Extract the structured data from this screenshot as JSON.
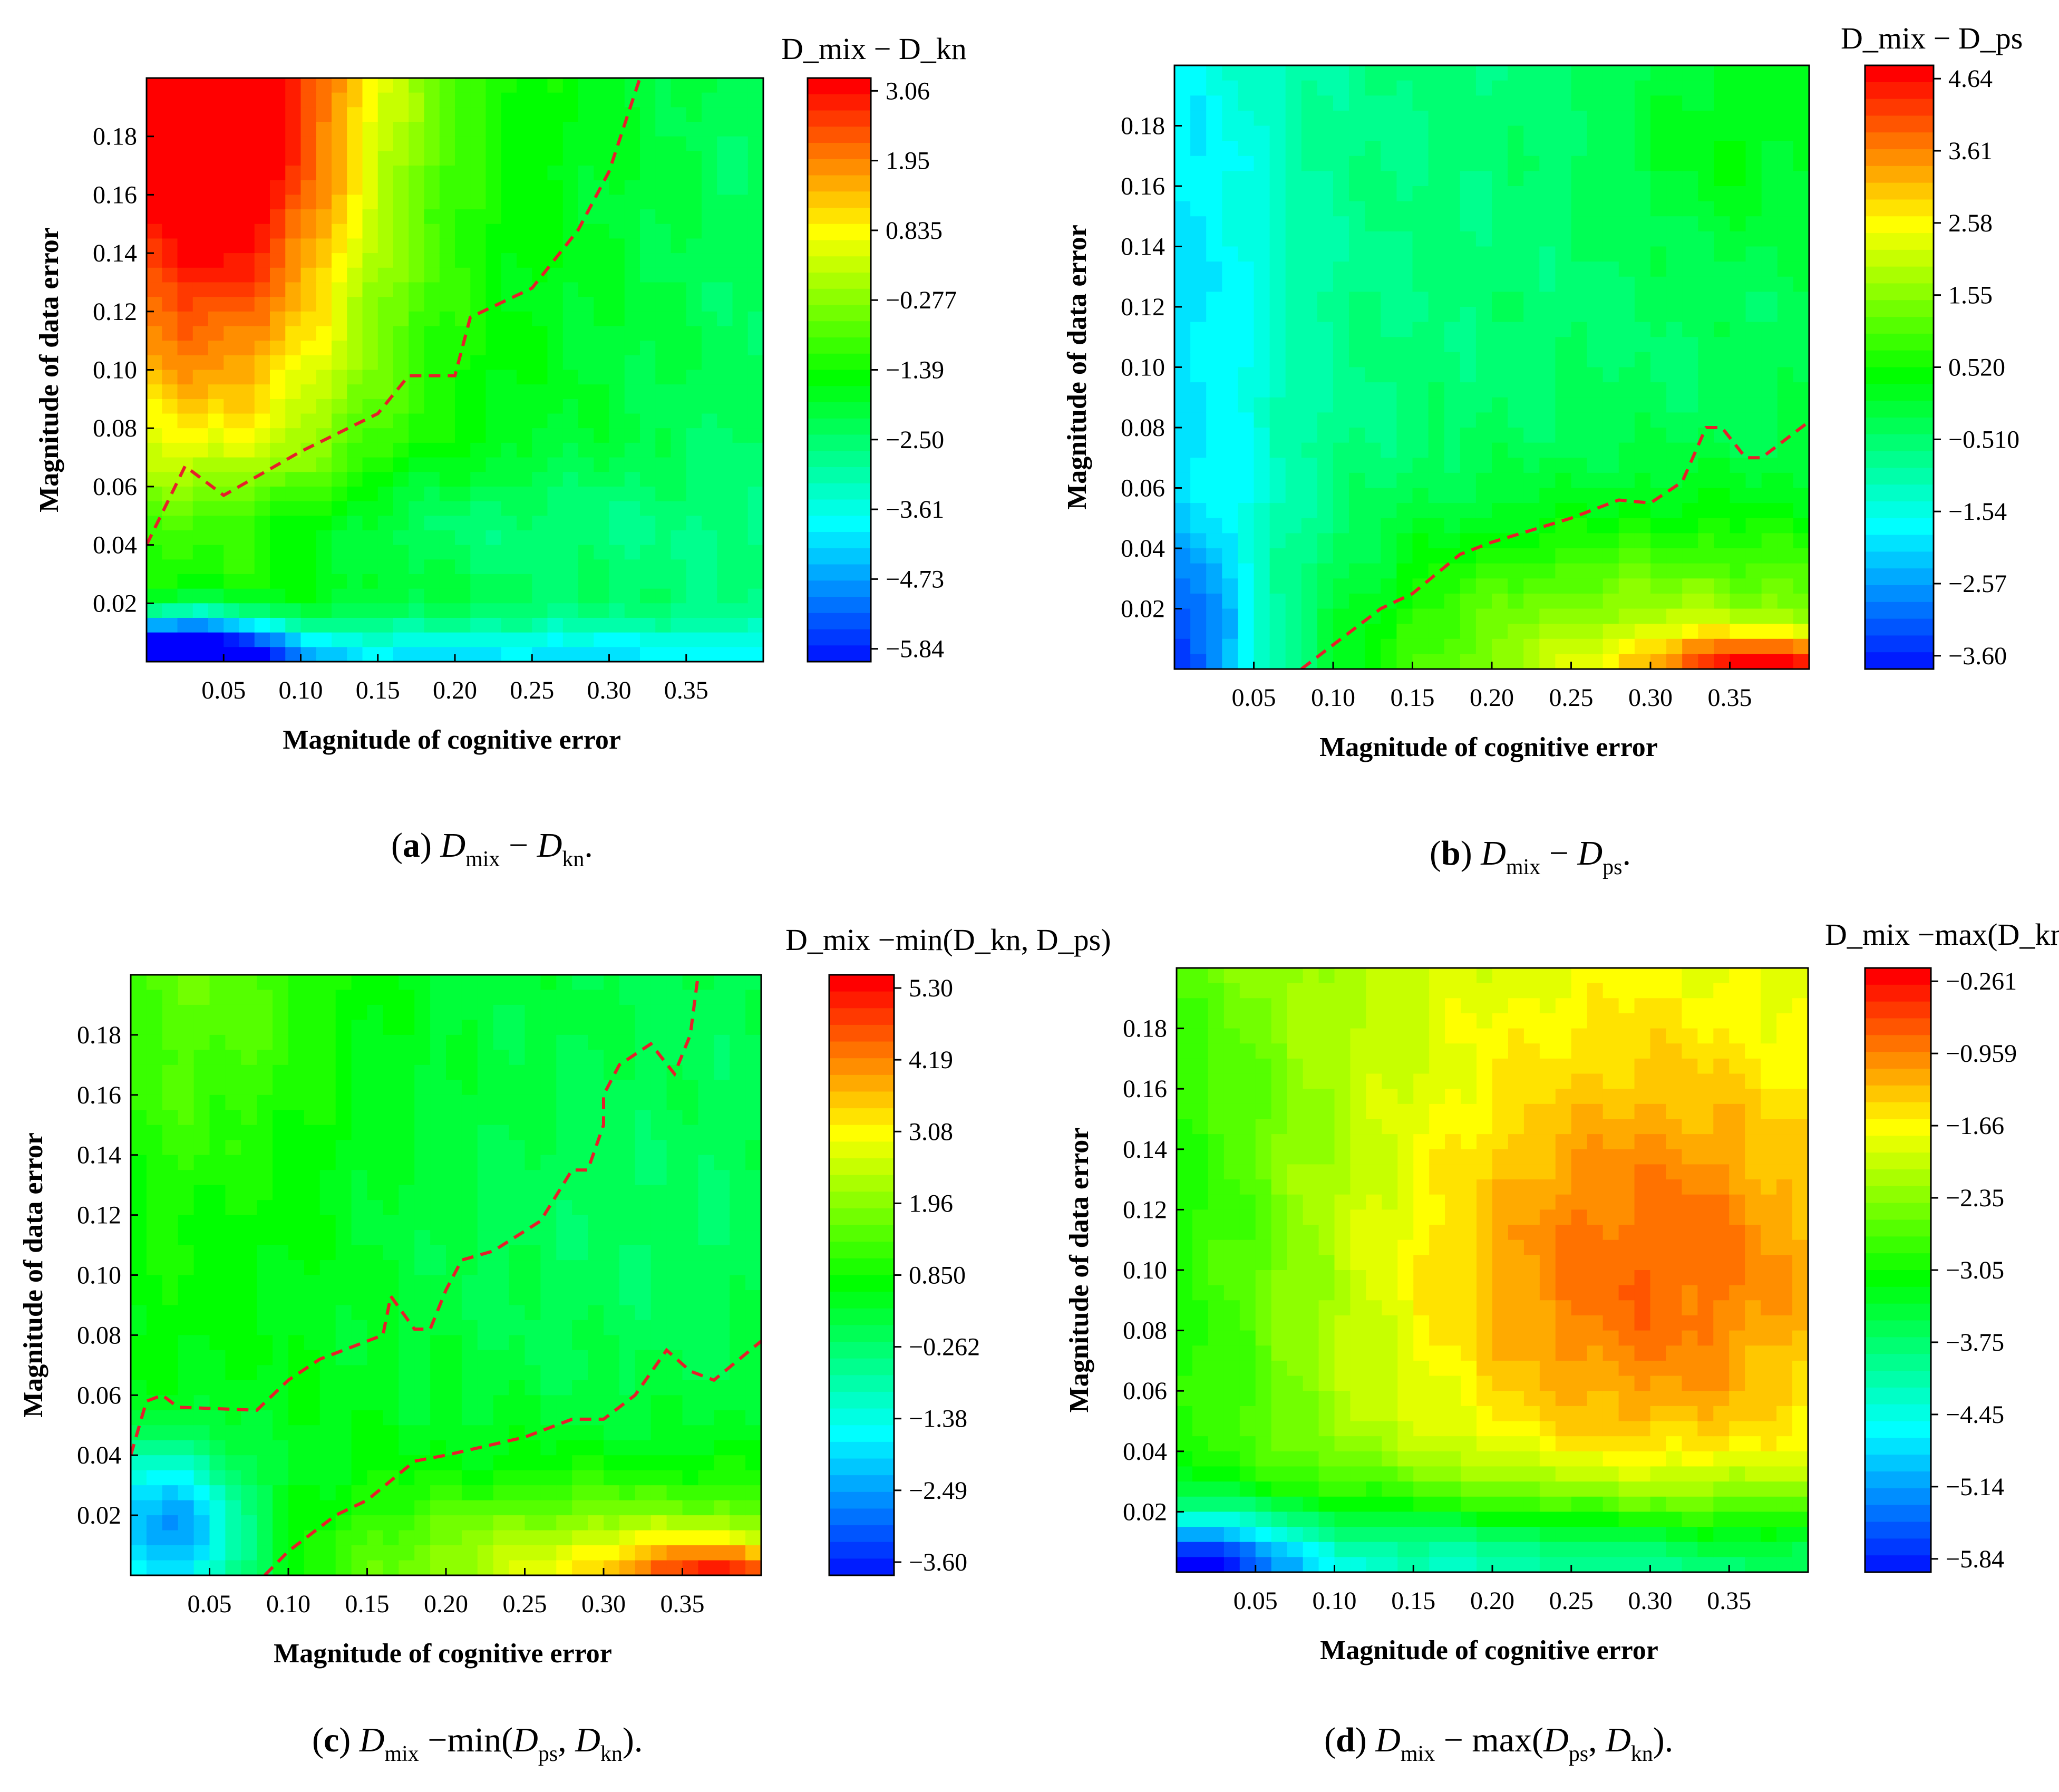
{
  "figure": {
    "panels": [
      {
        "id": "a",
        "caption_label": "a",
        "caption_expr": [
          "D",
          "mix",
          " − ",
          "D",
          "kn",
          "."
        ],
        "colorbar_title": "D_mix − D_kn",
        "colorbar_ticks": [
          "3.06",
          "1.95",
          "0.835",
          "−0.277",
          "−1.39",
          "−2.50",
          "−3.61",
          "−4.73",
          "−5.84"
        ],
        "x_ticks": [
          "0.05",
          "0.10",
          "0.15",
          "0.20",
          "0.25",
          "0.30",
          "0.35"
        ],
        "y_ticks": [
          "0.02",
          "0.04",
          "0.06",
          "0.08",
          "0.10",
          "0.12",
          "0.14",
          "0.16",
          "0.18"
        ]
      },
      {
        "id": "b",
        "caption_label": "b",
        "caption_expr": [
          "D",
          "mix",
          " − ",
          "D",
          "ps",
          "."
        ],
        "colorbar_title": "D_mix − D_ps",
        "colorbar_ticks": [
          "4.64",
          "3.61",
          "2.58",
          "1.55",
          "0.520",
          "−0.510",
          "−1.54",
          "−2.57",
          "−3.60"
        ],
        "x_ticks": [
          "0.05",
          "0.10",
          "0.15",
          "0.20",
          "0.25",
          "0.30",
          "0.35"
        ],
        "y_ticks": [
          "0.02",
          "0.04",
          "0.06",
          "0.08",
          "0.10",
          "0.12",
          "0.14",
          "0.16",
          "0.18"
        ]
      },
      {
        "id": "c",
        "caption_label": "c",
        "caption_expr": [
          "D",
          "mix",
          " −min(",
          "D",
          "ps",
          ", ",
          "D",
          "kn",
          ")."
        ],
        "colorbar_title": "D_mix −min(D_kn, D_ps)",
        "colorbar_ticks": [
          "5.30",
          "4.19",
          "3.08",
          "1.96",
          "0.850",
          "−0.262",
          "−1.38",
          "−2.49",
          "−3.60"
        ],
        "x_ticks": [
          "0.05",
          "0.10",
          "0.15",
          "0.20",
          "0.25",
          "0.30",
          "0.35"
        ],
        "y_ticks": [
          "0.02",
          "0.04",
          "0.06",
          "0.08",
          "0.10",
          "0.12",
          "0.14",
          "0.16",
          "0.18"
        ]
      },
      {
        "id": "d",
        "caption_label": "d",
        "caption_expr": [
          "D",
          "mix",
          " − max(",
          "D",
          "ps",
          ", ",
          "D",
          "kn",
          ")."
        ],
        "colorbar_title": "D_mix −max(D_kn, D_ps)",
        "colorbar_ticks": [
          "−0.261",
          "−0.959",
          "−1.66",
          "−2.35",
          "−3.05",
          "−3.75",
          "−4.45",
          "−5.14",
          "−5.84"
        ],
        "x_ticks": [
          "0.05",
          "0.10",
          "0.15",
          "0.20",
          "0.25",
          "0.30",
          "0.35"
        ],
        "y_ticks": [
          "0.02",
          "0.04",
          "0.06",
          "0.08",
          "0.10",
          "0.12",
          "0.14",
          "0.16",
          "0.18"
        ]
      }
    ],
    "xlabel": "Magnitude of cognitive error",
    "ylabel": "Magnitude of data error",
    "colormap": [
      "#0000ff",
      "#0080ff",
      "#00ffff",
      "#00ff80",
      "#00ff00",
      "#80ff00",
      "#ffff00",
      "#ff8000",
      "#ff0000"
    ],
    "contour_color": "#e5202a"
  },
  "chart_data": [
    {
      "type": "heatmap",
      "panel": "a",
      "title": "D_mix − D_kn",
      "xlabel": "Magnitude of cognitive error",
      "ylabel": "Magnitude of data error",
      "xlim": [
        0.0,
        0.4
      ],
      "ylim": [
        0.0,
        0.2
      ],
      "zlim": [
        -5.84,
        3.06
      ],
      "zero_contour": [
        [
          0.0,
          0.04
        ],
        [
          0.025,
          0.067
        ],
        [
          0.05,
          0.057
        ],
        [
          0.1,
          0.072
        ],
        [
          0.15,
          0.085
        ],
        [
          0.17,
          0.098
        ],
        [
          0.2,
          0.098
        ],
        [
          0.21,
          0.118
        ],
        [
          0.25,
          0.128
        ],
        [
          0.28,
          0.148
        ],
        [
          0.3,
          0.168
        ],
        [
          0.32,
          0.2
        ]
      ],
      "features": [
        "max (~3.06) at cognitive 0.03–0.05, data 0.17–0.20",
        "min (~−5.84) near cognitive 0.02, data 0.00–0.01"
      ]
    },
    {
      "type": "heatmap",
      "panel": "b",
      "title": "D_mix − D_ps",
      "xlabel": "Magnitude of cognitive error",
      "ylabel": "Magnitude of data error",
      "xlim": [
        0.0,
        0.4
      ],
      "ylim": [
        0.0,
        0.2
      ],
      "zlim": [
        -3.6,
        4.64
      ],
      "zero_contour": [
        [
          0.08,
          0.0
        ],
        [
          0.1,
          0.008
        ],
        [
          0.13,
          0.02
        ],
        [
          0.15,
          0.025
        ],
        [
          0.18,
          0.038
        ],
        [
          0.2,
          0.042
        ],
        [
          0.25,
          0.05
        ],
        [
          0.28,
          0.056
        ],
        [
          0.3,
          0.055
        ],
        [
          0.32,
          0.062
        ],
        [
          0.335,
          0.08
        ],
        [
          0.345,
          0.08
        ],
        [
          0.36,
          0.07
        ],
        [
          0.37,
          0.07
        ],
        [
          0.4,
          0.082
        ]
      ],
      "features": [
        "max (~4.64) at cognitive 0.30–0.40, data 0.00–0.01",
        "min (~−3.60) near cognitive 0.00–0.02, data 0.00–0.02"
      ]
    },
    {
      "type": "heatmap",
      "panel": "c",
      "title": "D_mix − min(D_kn, D_ps)",
      "xlabel": "Magnitude of cognitive error",
      "ylabel": "Magnitude of data error",
      "xlim": [
        0.0,
        0.4
      ],
      "ylim": [
        0.0,
        0.2
      ],
      "zlim": [
        -3.6,
        5.3
      ],
      "zero_contour_upper": [
        [
          0.0,
          0.04
        ],
        [
          0.01,
          0.058
        ],
        [
          0.02,
          0.06
        ],
        [
          0.03,
          0.056
        ],
        [
          0.08,
          0.055
        ],
        [
          0.1,
          0.065
        ],
        [
          0.12,
          0.072
        ],
        [
          0.16,
          0.08
        ],
        [
          0.165,
          0.093
        ],
        [
          0.18,
          0.082
        ],
        [
          0.19,
          0.082
        ],
        [
          0.2,
          0.095
        ],
        [
          0.21,
          0.105
        ],
        [
          0.23,
          0.108
        ],
        [
          0.26,
          0.118
        ],
        [
          0.28,
          0.135
        ],
        [
          0.29,
          0.135
        ],
        [
          0.3,
          0.15
        ],
        [
          0.3,
          0.16
        ],
        [
          0.31,
          0.17
        ],
        [
          0.33,
          0.177
        ],
        [
          0.345,
          0.167
        ],
        [
          0.355,
          0.18
        ],
        [
          0.36,
          0.2
        ]
      ],
      "zero_contour_lower": [
        [
          0.085,
          0.0
        ],
        [
          0.1,
          0.008
        ],
        [
          0.13,
          0.02
        ],
        [
          0.15,
          0.025
        ],
        [
          0.18,
          0.038
        ],
        [
          0.2,
          0.04
        ],
        [
          0.25,
          0.046
        ],
        [
          0.28,
          0.052
        ],
        [
          0.3,
          0.052
        ],
        [
          0.32,
          0.06
        ],
        [
          0.34,
          0.075
        ],
        [
          0.355,
          0.068
        ],
        [
          0.37,
          0.065
        ],
        [
          0.4,
          0.078
        ]
      ],
      "features": [
        "max (~5.30) at cognitive 0.35–0.40, data 0.00–0.01",
        "min (~−3.60) near cognitive 0.00–0.05, data 0.00–0.03"
      ]
    },
    {
      "type": "heatmap",
      "panel": "d",
      "title": "D_mix − max(D_kn, D_ps)",
      "xlabel": "Magnitude of cognitive error",
      "ylabel": "Magnitude of data error",
      "xlim": [
        0.0,
        0.4
      ],
      "ylim": [
        0.0,
        0.2
      ],
      "zlim": [
        -5.84,
        -0.261
      ],
      "features": [
        "max (~−0.261) around cognitive 0.25–0.35, data 0.08–0.12",
        "min (~−5.84) near cognitive 0.00–0.03, data 0.00–0.01"
      ]
    }
  ]
}
